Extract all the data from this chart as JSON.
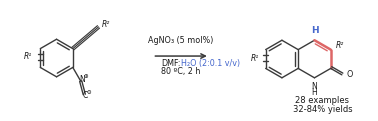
{
  "background_color": "#ffffff",
  "fig_width": 3.78,
  "fig_height": 1.21,
  "dpi": 100,
  "reagent_line1": "AgNO₃ (5 mol%)",
  "reagent_line2": "DMF:",
  "reagent_line2b": "H₂O (2:0.1 v/v)",
  "reagent_line3": "80 ºC, 2 h",
  "annotation_line1": "28 examples",
  "annotation_line2": "32-84% yields",
  "bond_color": "#3a3a3a",
  "highlight_blue": "#4466cc",
  "highlight_pink": "#dd6666",
  "text_color": "#1a1a1a",
  "arrow_color": "#3a3a3a",
  "water_color": "#4466cc",
  "font_size_reagent": 5.8,
  "font_size_annotation": 6.0
}
